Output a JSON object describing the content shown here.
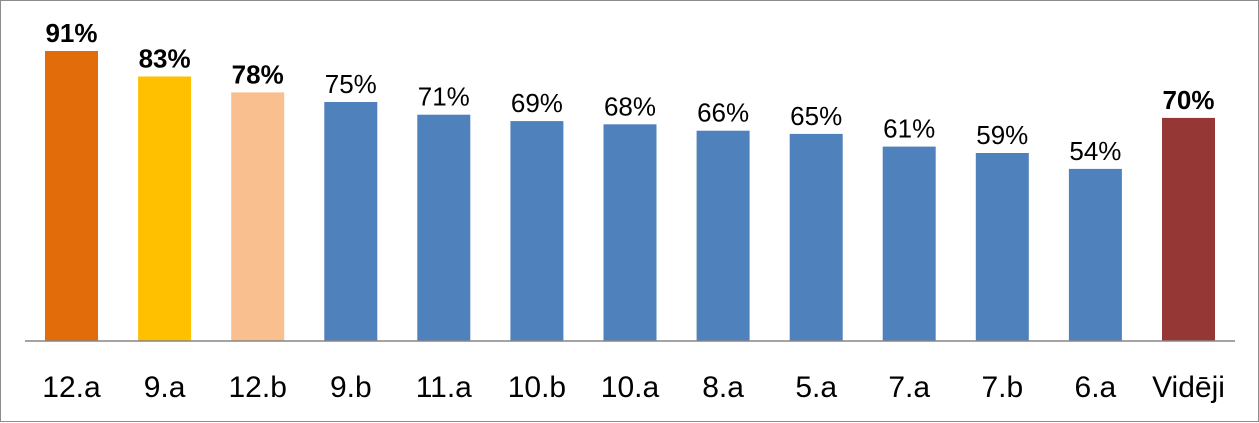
{
  "chart_data": {
    "type": "bar",
    "categories": [
      "12.a",
      "9.a",
      "12.b",
      "9.b",
      "11.a",
      "10.b",
      "10.a",
      "8.a",
      "5.a",
      "7.a",
      "7.b",
      "6.a",
      "Vidēji"
    ],
    "values": [
      91,
      83,
      78,
      75,
      71,
      69,
      68,
      66,
      65,
      61,
      59,
      54,
      70
    ],
    "data_labels": [
      "91%",
      "83%",
      "78%",
      "75%",
      "71%",
      "69%",
      "68%",
      "66%",
      "65%",
      "61%",
      "59%",
      "54%",
      "70%"
    ],
    "bold_labels": [
      true,
      true,
      true,
      false,
      false,
      false,
      false,
      false,
      false,
      false,
      false,
      false,
      true
    ],
    "colors": [
      "#E26B0A",
      "#FFC000",
      "#FABF8F",
      "#4F81BD",
      "#4F81BD",
      "#4F81BD",
      "#4F81BD",
      "#4F81BD",
      "#4F81BD",
      "#4F81BD",
      "#4F81BD",
      "#4F81BD",
      "#953735"
    ],
    "title": "",
    "xlabel": "",
    "ylabel": "",
    "ylim": [
      0,
      100
    ],
    "grid": false,
    "legend": "none"
  }
}
